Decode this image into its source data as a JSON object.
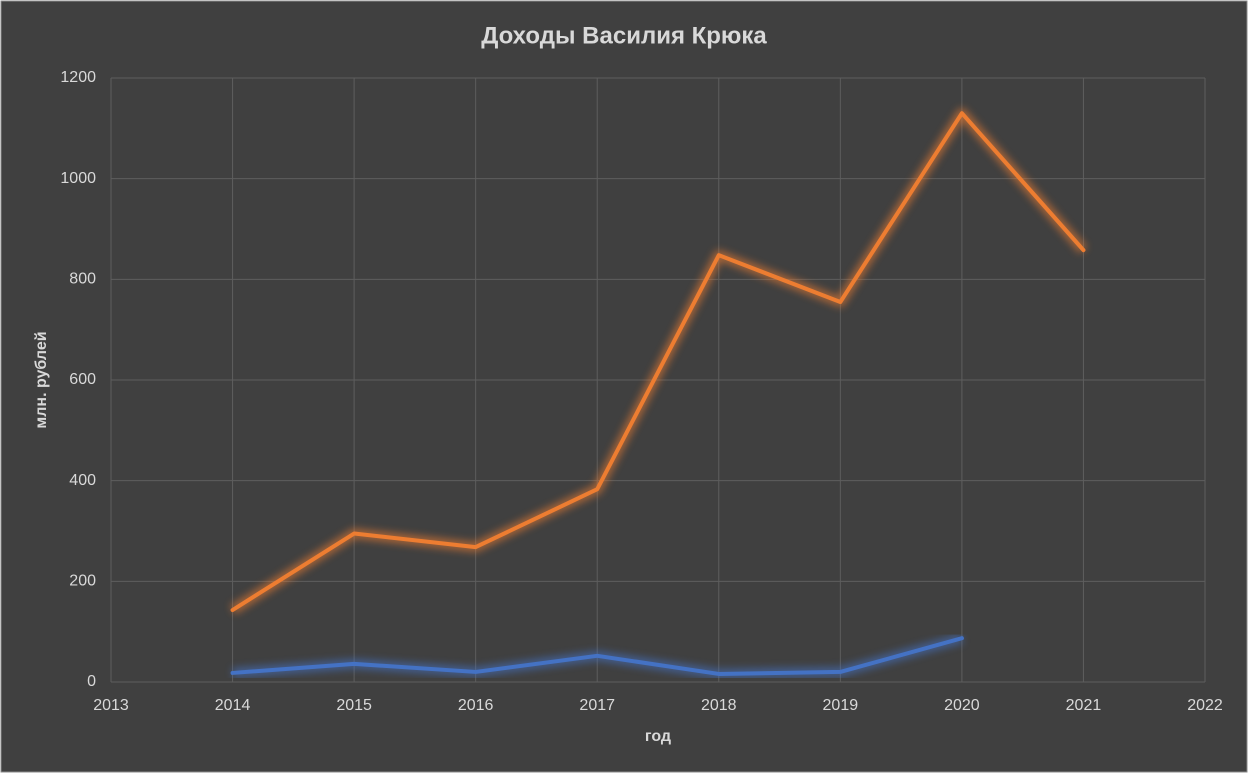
{
  "chart_data": {
    "type": "line",
    "title": "Доходы Василия  Крюка",
    "x_label": "год",
    "y_label": "млн. рублей",
    "x": [
      2014,
      2015,
      2016,
      2017,
      2018,
      2019,
      2020,
      2021
    ],
    "series": [
      {
        "color": "#ed7d31",
        "values": [
          143,
          295,
          268,
          383,
          848,
          755,
          1130,
          858
        ]
      },
      {
        "color": "#4472c4",
        "values": [
          18,
          36,
          20,
          52,
          16,
          20,
          87,
          null
        ]
      }
    ],
    "xlim": [
      2013,
      2022
    ],
    "xticks": [
      2013,
      2014,
      2015,
      2016,
      2017,
      2018,
      2019,
      2020,
      2021,
      2022
    ],
    "ylim": [
      0,
      1200
    ],
    "yticks": [
      0,
      200,
      400,
      600,
      800,
      1000,
      1200
    ],
    "grid": true
  }
}
